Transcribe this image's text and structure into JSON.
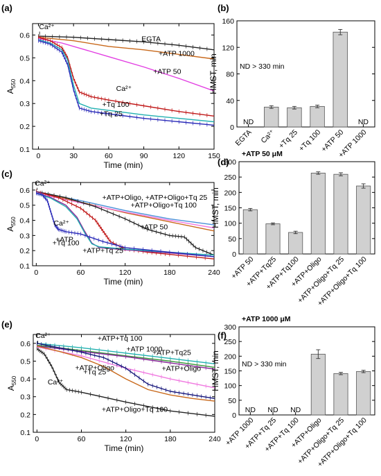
{
  "colors": {
    "black": "#222222",
    "orange": "#c8681a",
    "magenta": "#e23ee2",
    "red": "#c01818",
    "teal": "#20b0b0",
    "blue": "#2a2ab8",
    "navy": "#14147a",
    "green": "#3a9a3a",
    "lightblue": "#4a90d8",
    "purple": "#8a2a9a",
    "pink": "#f07ae0",
    "gray": "#888888",
    "bar": "#d0d0d0"
  },
  "chart_data": [
    {
      "panel": "(a)",
      "type": "line",
      "xlabel": "Time (min)",
      "ylabel": "A550",
      "xlim": [
        -5,
        150
      ],
      "ylim": [
        0.1,
        0.65
      ],
      "xticks": [
        "0",
        "30",
        "60",
        "90",
        "120",
        "150"
      ],
      "yticks": [
        "0.1",
        "0.2",
        "0.3",
        "0.4",
        "0.5",
        "0.6"
      ],
      "series": [
        {
          "name": "EGTA",
          "color": "black",
          "error_bars": true,
          "x": [
            0,
            30,
            60,
            90,
            120,
            150
          ],
          "y": [
            0.595,
            0.59,
            0.58,
            0.57,
            0.555,
            0.535
          ]
        },
        {
          "name": "+ATP 1000",
          "color": "orange",
          "x": [
            0,
            30,
            60,
            90,
            120,
            150
          ],
          "y": [
            0.59,
            0.575,
            0.55,
            0.535,
            0.515,
            0.495
          ]
        },
        {
          "name": "+ATP 50",
          "color": "magenta",
          "x": [
            0,
            20,
            40,
            60,
            90,
            120,
            150
          ],
          "y": [
            0.585,
            0.565,
            0.535,
            0.505,
            0.46,
            0.41,
            0.355
          ]
        },
        {
          "name": "Ca2+",
          "color": "red",
          "error_bars": true,
          "x": [
            0,
            10,
            20,
            25,
            30,
            35,
            45,
            60,
            90,
            120,
            150
          ],
          "y": [
            0.59,
            0.575,
            0.545,
            0.5,
            0.41,
            0.35,
            0.33,
            0.315,
            0.29,
            0.265,
            0.245
          ]
        },
        {
          "name": "+Tq 100",
          "color": "teal",
          "x": [
            0,
            10,
            20,
            25,
            30,
            35,
            45,
            60,
            90,
            120,
            150
          ],
          "y": [
            0.58,
            0.565,
            0.535,
            0.49,
            0.38,
            0.3,
            0.28,
            0.27,
            0.25,
            0.235,
            0.22
          ]
        },
        {
          "name": "+Tq 25",
          "color": "blue",
          "error_bars": true,
          "x": [
            0,
            10,
            20,
            25,
            30,
            35,
            45,
            60,
            90,
            120,
            150
          ],
          "y": [
            0.575,
            0.56,
            0.525,
            0.47,
            0.36,
            0.28,
            0.265,
            0.255,
            0.235,
            0.22,
            0.205
          ]
        }
      ],
      "annotations": [
        "Ca²⁺",
        "EGTA",
        "+ATP 1000",
        "+ATP 50",
        "Ca²⁺",
        "+Tq 100",
        "+Tq 25"
      ]
    },
    {
      "panel": "(b)",
      "type": "bar",
      "ylabel": "HMST, min",
      "ylim": [
        0,
        160
      ],
      "yticks": [
        "0",
        "40",
        "80",
        "120",
        "160"
      ],
      "categories": [
        "EGTA",
        "Ca²⁺",
        "+Tq 25",
        "+Tq 100",
        "+ATP 50",
        "+ATP 1000"
      ],
      "values": [
        null,
        30,
        29,
        31,
        143,
        null
      ],
      "errors": [
        0,
        2,
        2,
        2,
        4,
        0
      ],
      "bar_labels": [
        "ND",
        "",
        "",
        "",
        "",
        "ND"
      ],
      "annotations": [
        "ND > 330 min"
      ]
    },
    {
      "panel": "(c)",
      "type": "line",
      "xlabel": "Time (min)",
      "ylabel": "A550",
      "xlim": [
        -5,
        240
      ],
      "ylim": [
        0.1,
        0.65
      ],
      "xticks": [
        "0",
        "60",
        "120",
        "180",
        "240"
      ],
      "yticks": [
        "0.1",
        "0.2",
        "0.3",
        "0.4",
        "0.5",
        "0.6"
      ],
      "series": [
        {
          "name": "+ATP+Oligo",
          "color": "orange",
          "x": [
            0,
            60,
            120,
            180,
            240
          ],
          "y": [
            0.59,
            0.52,
            0.45,
            0.39,
            0.33
          ]
        },
        {
          "name": "+ATP+Oligo+Tq 25",
          "color": "lightblue",
          "x": [
            0,
            60,
            120,
            180,
            240
          ],
          "y": [
            0.59,
            0.53,
            0.465,
            0.41,
            0.37
          ]
        },
        {
          "name": "+ATP+Oligo+Tq 100",
          "color": "pink",
          "x": [
            0,
            60,
            120,
            180,
            240
          ],
          "y": [
            0.58,
            0.515,
            0.455,
            0.4,
            0.35
          ]
        },
        {
          "name": "+ATP 50",
          "color": "black",
          "error_bars": true,
          "x": [
            0,
            40,
            80,
            120,
            150,
            180,
            200,
            215,
            240
          ],
          "y": [
            0.59,
            0.55,
            0.49,
            0.41,
            0.34,
            0.3,
            0.29,
            0.22,
            0.17
          ]
        },
        {
          "name": "+ATP+Tq 25",
          "color": "red",
          "error_bars": true,
          "x": [
            0,
            30,
            60,
            80,
            90,
            100,
            120,
            150,
            180,
            240
          ],
          "y": [
            0.59,
            0.55,
            0.48,
            0.4,
            0.33,
            0.26,
            0.21,
            0.19,
            0.175,
            0.145
          ]
        },
        {
          "name": "+ATP",
          "color": "purple",
          "x": [
            0,
            20,
            40,
            55,
            65,
            75,
            85,
            120,
            180,
            240
          ],
          "y": [
            0.58,
            0.55,
            0.5,
            0.42,
            0.33,
            0.25,
            0.22,
            0.205,
            0.185,
            0.16
          ]
        },
        {
          "name": "+Tq 100",
          "color": "teal",
          "x": [
            0,
            20,
            40,
            55,
            65,
            75,
            85,
            120,
            180,
            240
          ],
          "y": [
            0.58,
            0.545,
            0.49,
            0.41,
            0.32,
            0.245,
            0.225,
            0.21,
            0.19,
            0.17
          ]
        },
        {
          "name": "Ca2+",
          "color": "blue",
          "error_bars": true,
          "x": [
            0,
            8,
            15,
            20,
            25,
            30,
            40,
            60,
            90,
            120,
            180,
            240
          ],
          "y": [
            0.58,
            0.57,
            0.53,
            0.45,
            0.37,
            0.34,
            0.325,
            0.31,
            0.26,
            0.22,
            0.19,
            0.16
          ]
        }
      ],
      "annotations": [
        "Ca²⁺",
        "+ATP+Oligo, +ATP+Oligo+Tq 25",
        "+ATP+Oligo+Tq 100",
        "Ca²⁺",
        "+ATP 50",
        "+ATP",
        "+Tq 100",
        "+ATP+Tq 25"
      ]
    },
    {
      "panel": "(d)",
      "type": "bar",
      "title": "+ATP 50 μM",
      "ylabel": "HMST, min",
      "ylim": [
        0,
        300
      ],
      "yticks": [
        "0",
        "50",
        "100",
        "150",
        "200",
        "250",
        "300"
      ],
      "categories": [
        "+ATP 50",
        "+ATP+Tq25",
        "+ATP+Tq100",
        "+ATP+Oligo",
        "+ATP+Oligo+Tq 25",
        "+ATP+Oligo+Tq 100"
      ],
      "values": [
        144,
        98,
        70,
        263,
        259,
        221
      ],
      "errors": [
        4,
        3,
        4,
        4,
        5,
        7
      ]
    },
    {
      "panel": "(e)",
      "type": "line",
      "xlabel": "Time (min)",
      "ylabel": "A550",
      "xlim": [
        -5,
        240
      ],
      "ylim": [
        0.1,
        0.65
      ],
      "xticks": [
        "0",
        "60",
        "120",
        "180",
        "240"
      ],
      "yticks": [
        "0.1",
        "0.2",
        "0.3",
        "0.4",
        "0.5",
        "0.6"
      ],
      "series": [
        {
          "name": "+ATP+Tq 100",
          "color": "teal",
          "error_bars": true,
          "x": [
            0,
            60,
            120,
            180,
            240
          ],
          "y": [
            0.6,
            0.575,
            0.545,
            0.515,
            0.485
          ]
        },
        {
          "name": "+ATP 1000",
          "color": "green",
          "error_bars": true,
          "x": [
            0,
            60,
            120,
            180,
            240
          ],
          "y": [
            0.59,
            0.56,
            0.53,
            0.5,
            0.465
          ]
        },
        {
          "name": "+ATP+Tq25",
          "color": "purple",
          "error_bars": true,
          "x": [
            0,
            60,
            120,
            180,
            240
          ],
          "y": [
            0.585,
            0.555,
            0.525,
            0.49,
            0.455
          ]
        },
        {
          "name": "+ATP+Oligo",
          "color": "pink",
          "error_bars": true,
          "x": [
            0,
            60,
            120,
            180,
            240
          ],
          "y": [
            0.58,
            0.53,
            0.46,
            0.4,
            0.35
          ]
        },
        {
          "name": "+ATP+Oligo+Tq 100",
          "color": "navy",
          "error_bars": true,
          "x": [
            0,
            30,
            60,
            90,
            120,
            150,
            180,
            210,
            240
          ],
          "y": [
            0.6,
            0.575,
            0.55,
            0.52,
            0.46,
            0.37,
            0.33,
            0.31,
            0.29
          ]
        },
        {
          "name": "+ATP+Oligo+Tq 25",
          "color": "orange",
          "x": [
            0,
            30,
            60,
            90,
            120,
            150,
            180,
            210,
            240
          ],
          "y": [
            0.585,
            0.555,
            0.52,
            0.47,
            0.4,
            0.34,
            0.31,
            0.29,
            0.275
          ]
        },
        {
          "name": "Ca2+",
          "color": "black",
          "error_bars": true,
          "x": [
            0,
            10,
            20,
            30,
            40,
            60,
            120,
            180,
            240
          ],
          "y": [
            0.57,
            0.54,
            0.47,
            0.38,
            0.34,
            0.325,
            0.27,
            0.22,
            0.19
          ]
        }
      ],
      "annotations": [
        "Ca²⁺",
        "+ATP+Tq 100",
        "+ATP 1000",
        "+ATP+Tq25",
        "+ATP+Oligo",
        "+ATP+Oligo",
        "+Tq 25",
        "Ca²⁺",
        "+ATP+Oligo+Tq 100"
      ]
    },
    {
      "panel": "(f)",
      "type": "bar",
      "title": "+ATP 1000 μM",
      "ylabel": "HMST, min",
      "ylim": [
        0,
        300
      ],
      "yticks": [
        "0",
        "50",
        "100",
        "150",
        "200",
        "250",
        "300"
      ],
      "categories": [
        "+ATP 1000",
        "+ATP+Tq 25",
        "+ATP+Tq 100",
        "+ATP+Oligo",
        "+ATP+Oligo+Tq 25",
        "+ATP+Oligo+Tq 100"
      ],
      "values": [
        null,
        null,
        null,
        207,
        141,
        148
      ],
      "errors": [
        0,
        0,
        0,
        15,
        4,
        4
      ],
      "bar_labels": [
        "ND",
        "ND",
        "ND",
        "",
        "",
        ""
      ],
      "annotations": [
        "ND > 330 min"
      ]
    }
  ]
}
